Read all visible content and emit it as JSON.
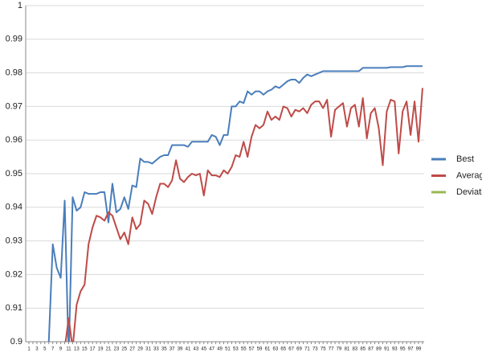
{
  "chart_data": {
    "type": "line",
    "categories": [
      1,
      null,
      3,
      null,
      5,
      null,
      7,
      null,
      9,
      null,
      11,
      null,
      13,
      null,
      15,
      null,
      17,
      null,
      19,
      null,
      21,
      null,
      23,
      null,
      25,
      null,
      27,
      null,
      29,
      null,
      31,
      null,
      33,
      null,
      35,
      null,
      37,
      null,
      39,
      null,
      41,
      null,
      43,
      null,
      45,
      null,
      47,
      null,
      49,
      null,
      51,
      null,
      53,
      null,
      55,
      null,
      57,
      null,
      59,
      null,
      61,
      null,
      63,
      null,
      65,
      null,
      67,
      null,
      69,
      null,
      71,
      null,
      73,
      null,
      75,
      null,
      77,
      null,
      79,
      null,
      81,
      null,
      83,
      null,
      85,
      null,
      87,
      null,
      89,
      null,
      91,
      null,
      93,
      null,
      95,
      null,
      97,
      null,
      99,
      null
    ],
    "series": [
      {
        "name": "Best",
        "color": "#4a7ebb",
        "values": [
          null,
          null,
          null,
          null,
          null,
          0.9,
          0.929,
          0.922,
          0.919,
          0.942,
          0.895,
          0.943,
          0.939,
          0.94,
          0.9445,
          0.944,
          0.944,
          0.944,
          0.9445,
          0.9445,
          0.9355,
          0.947,
          0.9385,
          0.9395,
          0.943,
          0.9395,
          0.9465,
          0.946,
          0.9545,
          0.9535,
          0.9535,
          0.953,
          0.954,
          0.955,
          0.9555,
          0.9555,
          0.9585,
          0.9585,
          0.9585,
          0.9585,
          0.958,
          0.9595,
          0.9595,
          0.9595,
          0.9595,
          0.9595,
          0.9615,
          0.961,
          0.9585,
          0.9615,
          0.9615,
          0.97,
          0.97,
          0.9715,
          0.971,
          0.9745,
          0.9735,
          0.9745,
          0.9745,
          0.9735,
          0.9745,
          0.975,
          0.976,
          0.9755,
          0.9765,
          0.9775,
          0.978,
          0.978,
          0.977,
          0.9785,
          0.9795,
          0.979,
          0.9795,
          0.98,
          0.9805,
          0.9805,
          0.9805,
          0.9805,
          0.9805,
          0.9805,
          0.9805,
          0.9805,
          0.9805,
          0.9805,
          0.9815,
          0.9815,
          0.9815,
          0.9815,
          0.9815,
          0.9815,
          0.9815,
          0.9817,
          0.9817,
          0.9817,
          0.9817,
          0.982,
          0.982,
          0.982,
          0.982,
          0.982
        ]
      },
      {
        "name": "Average",
        "color": "#be4b48",
        "values": [
          null,
          null,
          null,
          null,
          null,
          null,
          null,
          null,
          null,
          0.898,
          0.907,
          0.898,
          0.911,
          0.915,
          0.917,
          0.929,
          0.934,
          0.9375,
          0.937,
          0.936,
          0.9385,
          0.9375,
          0.934,
          0.9305,
          0.9325,
          0.929,
          0.937,
          0.9335,
          0.935,
          0.942,
          0.941,
          0.938,
          0.943,
          0.947,
          0.947,
          0.946,
          0.948,
          0.954,
          0.9485,
          0.9475,
          0.949,
          0.95,
          0.9495,
          0.95,
          0.9435,
          0.951,
          0.9495,
          0.9495,
          0.949,
          0.951,
          0.95,
          0.952,
          0.9555,
          0.955,
          0.9595,
          0.955,
          0.961,
          0.9645,
          0.9635,
          0.9645,
          0.9685,
          0.966,
          0.967,
          0.966,
          0.97,
          0.9695,
          0.967,
          0.969,
          0.9685,
          0.9695,
          0.968,
          0.9705,
          0.9715,
          0.9715,
          0.9695,
          0.972,
          0.961,
          0.969,
          0.97,
          0.971,
          0.964,
          0.9695,
          0.9705,
          0.964,
          0.9725,
          0.9605,
          0.968,
          0.9695,
          0.9635,
          0.9525,
          0.9685,
          0.972,
          0.9715,
          0.956,
          0.9685,
          0.9715,
          0.9615,
          0.9715,
          0.9595,
          0.9755
        ]
      },
      {
        "name": "Deviation",
        "color": "#98b954",
        "values": [
          null,
          null,
          null,
          null,
          null,
          null,
          null,
          null,
          null,
          null,
          null,
          null,
          null,
          null,
          null,
          null,
          null,
          null,
          null,
          null,
          null,
          null,
          null,
          null,
          null,
          null,
          null,
          null,
          null,
          null,
          null,
          null,
          null,
          null,
          null,
          null,
          null,
          null,
          null,
          null,
          null,
          null,
          null,
          null,
          null,
          null,
          null,
          null,
          null,
          null,
          null,
          null,
          null,
          null,
          null,
          null,
          null,
          null,
          null,
          null,
          null,
          null,
          null,
          null,
          null,
          null,
          null,
          null,
          null,
          null,
          null,
          null,
          null,
          null,
          null,
          null,
          null,
          null,
          null,
          null,
          null,
          null,
          null,
          null,
          null,
          null,
          null,
          null,
          null,
          null,
          null,
          null,
          null,
          null,
          null,
          null,
          null,
          null,
          null,
          null
        ]
      }
    ],
    "ylim": [
      0.9,
      1
    ],
    "yticks": [
      0.9,
      0.91,
      0.92,
      0.93,
      0.94,
      0.95,
      0.96,
      0.97,
      0.98,
      0.99,
      1
    ],
    "grid": true,
    "legend": "right"
  }
}
